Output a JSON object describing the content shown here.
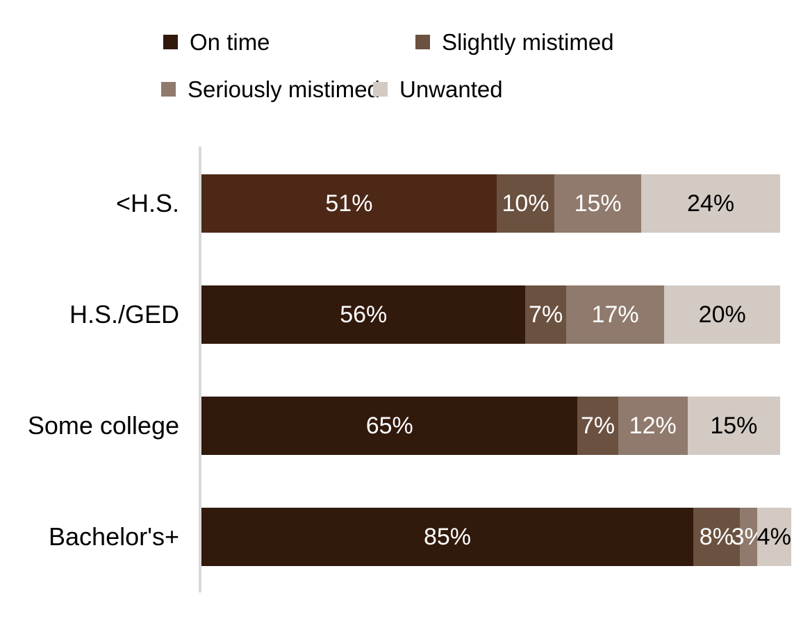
{
  "chart_data": {
    "type": "bar",
    "orientation": "horizontal",
    "stacked": true,
    "title": "",
    "xlabel": "",
    "ylabel": "",
    "value_suffix": "%",
    "xlim": [
      0,
      100
    ],
    "grid": false,
    "legend_position": "top",
    "categories": [
      "<H.S.",
      "H.S./GED",
      "Some college",
      "Bachelor's+"
    ],
    "series": [
      {
        "name": "On time",
        "color": "#31190C",
        "values": [
          51,
          56,
          65,
          85
        ]
      },
      {
        "name": "Slightly mistimed",
        "color": "#6B5140",
        "values": [
          10,
          7,
          7,
          8
        ]
      },
      {
        "name": "Seriously mistimed",
        "color": "#8F7A6D",
        "values": [
          15,
          17,
          12,
          3
        ]
      },
      {
        "name": "Unwanted",
        "color": "#D2CAC3",
        "values": [
          24,
          20,
          15,
          4
        ]
      }
    ],
    "label_colors": [
      "#FFFFFF",
      "#FFFFFF",
      "#FFFFFF",
      "#000000"
    ],
    "segment_color_overrides": [
      {
        "row": 0,
        "series": 0,
        "color": "#4D2817"
      }
    ],
    "axis_line_color": "#D9D9D9"
  }
}
